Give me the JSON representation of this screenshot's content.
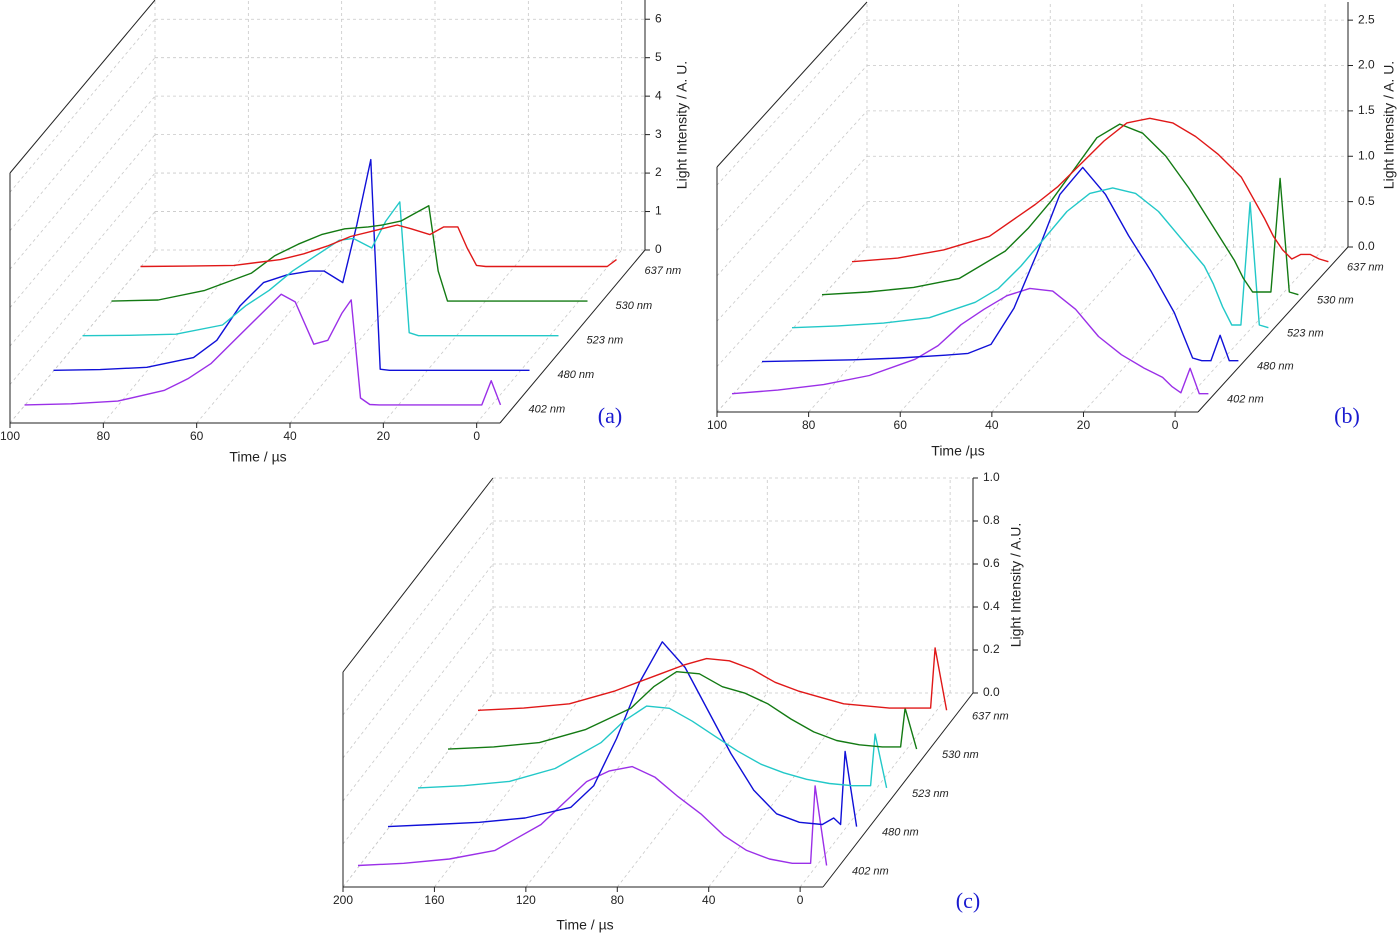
{
  "chart_data": [
    {
      "type": "waterfall",
      "label": "(a)",
      "xlabel": "Time / µs",
      "ylabel": "Light Intensity / A. U.",
      "x": [
        100,
        90,
        80,
        70,
        65,
        60,
        55,
        50,
        45,
        42,
        38,
        35,
        32,
        30,
        28,
        26,
        24,
        22,
        20,
        16,
        12,
        8,
        4,
        2,
        0,
        -2
      ],
      "xlim": [
        100,
        -5
      ],
      "xticks": [
        100,
        80,
        60,
        40,
        20,
        0
      ],
      "ylim": [
        0,
        6.5
      ],
      "yticks": [
        0,
        1,
        2,
        3,
        4,
        5,
        6
      ],
      "grid": true,
      "series": [
        {
          "name": "402 nm",
          "color": "#9b30e8",
          "values": [
            0.02,
            0.05,
            0.12,
            0.4,
            0.7,
            1.1,
            1.7,
            2.3,
            2.9,
            2.7,
            1.6,
            1.7,
            2.4,
            2.75,
            0.2,
            0.03,
            0.02,
            0.02,
            0.02,
            0.02,
            0.02,
            0.02,
            0.02,
            0.02,
            0.65,
            0.02
          ]
        },
        {
          "name": "480 nm",
          "color": "#1010d8",
          "values": [
            0.02,
            0.04,
            0.1,
            0.35,
            0.8,
            1.7,
            2.3,
            2.5,
            2.6,
            2.6,
            2.3,
            3.8,
            5.5,
            0.05,
            0.02,
            0.02,
            0.02,
            0.02,
            0.02,
            0.02,
            0.02,
            0.02,
            0.02,
            0.02,
            0.02,
            0.02
          ]
        },
        {
          "name": "523 nm",
          "color": "#22c8c8",
          "values": [
            0.02,
            0.03,
            0.06,
            0.3,
            0.8,
            1.2,
            1.7,
            2.1,
            2.5,
            2.55,
            2.3,
            3.0,
            3.5,
            0.1,
            0.02,
            0.02,
            0.02,
            0.02,
            0.02,
            0.02,
            0.02,
            0.02,
            0.02,
            0.02,
            0.02,
            0.02
          ]
        },
        {
          "name": "530 nm",
          "color": "#137a13",
          "values": [
            0.02,
            0.05,
            0.3,
            0.75,
            1.2,
            1.5,
            1.75,
            1.9,
            1.95,
            2.0,
            2.1,
            2.3,
            2.5,
            0.8,
            0.02,
            0.02,
            0.02,
            0.02,
            0.02,
            0.02,
            0.02,
            0.02,
            0.02,
            0.02,
            0.02,
            0.02
          ]
        },
        {
          "name": "637 nm",
          "color": "#e01818",
          "values": [
            0.02,
            0.03,
            0.05,
            0.2,
            0.35,
            0.55,
            0.8,
            0.95,
            1.1,
            1.0,
            0.85,
            1.05,
            1.05,
            0.5,
            0.05,
            0.02,
            0.02,
            0.02,
            0.02,
            0.02,
            0.02,
            0.02,
            0.02,
            0.02,
            0.02,
            0.2
          ]
        }
      ]
    },
    {
      "type": "waterfall",
      "label": "(b)",
      "xlabel": "Time /µs",
      "ylabel": "Light Intensity / A. U.",
      "x": [
        100,
        90,
        80,
        70,
        60,
        55,
        50,
        45,
        40,
        35,
        30,
        25,
        20,
        15,
        10,
        8,
        6,
        4,
        2,
        0,
        -2,
        -4
      ],
      "xlim": [
        100,
        -5
      ],
      "xticks": [
        100,
        80,
        60,
        40,
        20,
        0
      ],
      "ylim": [
        0,
        2.7
      ],
      "yticks": [
        {
          "value": 0,
          "label": "0.0"
        },
        0.5,
        {
          "value": 1,
          "label": "1.0"
        },
        1.5,
        {
          "value": 2,
          "label": "2.0"
        },
        2.5
      ],
      "grid": true,
      "series": [
        {
          "name": "402 nm",
          "color": "#9b30e8",
          "values": [
            0.02,
            0.06,
            0.12,
            0.22,
            0.4,
            0.55,
            0.78,
            0.95,
            1.1,
            1.18,
            1.15,
            0.95,
            0.65,
            0.45,
            0.3,
            0.25,
            0.2,
            0.1,
            0.03,
            0.3,
            0.02,
            0.02
          ]
        },
        {
          "name": "480 nm",
          "color": "#1010d8",
          "values": [
            0.01,
            0.02,
            0.03,
            0.05,
            0.08,
            0.1,
            0.2,
            0.6,
            1.2,
            1.85,
            2.15,
            1.85,
            1.4,
            1.0,
            0.55,
            0.3,
            0.05,
            0.02,
            0.02,
            0.3,
            0.02,
            0.02
          ]
        },
        {
          "name": "523 nm",
          "color": "#22c8c8",
          "values": [
            0.02,
            0.04,
            0.07,
            0.13,
            0.3,
            0.45,
            0.7,
            1.0,
            1.3,
            1.5,
            1.56,
            1.5,
            1.3,
            1.0,
            0.7,
            0.5,
            0.25,
            0.05,
            0.05,
            1.4,
            0.05,
            0.02
          ]
        },
        {
          "name": "530 nm",
          "color": "#137a13",
          "values": [
            0.02,
            0.05,
            0.1,
            0.2,
            0.5,
            0.75,
            1.05,
            1.4,
            1.75,
            1.9,
            1.8,
            1.55,
            1.2,
            0.8,
            0.4,
            0.2,
            0.05,
            0.05,
            0.05,
            1.3,
            0.05,
            0.02
          ]
        },
        {
          "name": "637 nm",
          "color": "#e01818",
          "values": [
            0.02,
            0.06,
            0.15,
            0.3,
            0.65,
            0.85,
            1.1,
            1.35,
            1.55,
            1.6,
            1.55,
            1.4,
            1.2,
            0.95,
            0.5,
            0.3,
            0.15,
            0.05,
            0.1,
            0.1,
            0.05,
            0.02
          ]
        }
      ]
    },
    {
      "type": "waterfall",
      "label": "(c)",
      "xlabel": "Time / µs",
      "ylabel": "Light Intensity / A.U.",
      "x": [
        200,
        180,
        160,
        140,
        120,
        110,
        100,
        90,
        80,
        70,
        60,
        50,
        40,
        30,
        20,
        10,
        5,
        2,
        0,
        -5
      ],
      "xlim": [
        200,
        -10
      ],
      "xticks": [
        200,
        160,
        120,
        80,
        40,
        0
      ],
      "ylim": [
        0,
        1
      ],
      "yticks": [
        {
          "value": 0,
          "label": "0.0"
        },
        0.2,
        0.4,
        0.6,
        0.8,
        {
          "value": 1,
          "label": "1.0"
        }
      ],
      "grid": true,
      "series": [
        {
          "name": "402 nm",
          "color": "#9b30e8",
          "values": [
            0.01,
            0.02,
            0.04,
            0.08,
            0.2,
            0.3,
            0.4,
            0.45,
            0.47,
            0.42,
            0.33,
            0.25,
            0.15,
            0.08,
            0.04,
            0.02,
            0.02,
            0.02,
            0.38,
            0.01
          ]
        },
        {
          "name": "480 nm",
          "color": "#1010d8",
          "values": [
            0.01,
            0.02,
            0.03,
            0.05,
            0.1,
            0.2,
            0.42,
            0.68,
            0.87,
            0.75,
            0.55,
            0.35,
            0.18,
            0.07,
            0.03,
            0.02,
            0.05,
            0.02,
            0.36,
            0.01
          ]
        },
        {
          "name": "523 nm",
          "color": "#22c8c8",
          "values": [
            0.01,
            0.02,
            0.04,
            0.1,
            0.22,
            0.32,
            0.39,
            0.38,
            0.32,
            0.25,
            0.18,
            0.12,
            0.08,
            0.05,
            0.03,
            0.02,
            0.02,
            0.02,
            0.26,
            0.01
          ]
        },
        {
          "name": "530 nm",
          "color": "#137a13",
          "values": [
            0.01,
            0.02,
            0.04,
            0.1,
            0.2,
            0.3,
            0.37,
            0.36,
            0.3,
            0.27,
            0.22,
            0.15,
            0.09,
            0.05,
            0.03,
            0.02,
            0.02,
            0.02,
            0.2,
            0.01
          ]
        },
        {
          "name": "637 nm",
          "color": "#e01818",
          "values": [
            0.01,
            0.02,
            0.04,
            0.1,
            0.18,
            0.22,
            0.25,
            0.24,
            0.2,
            0.14,
            0.1,
            0.07,
            0.04,
            0.03,
            0.02,
            0.02,
            0.02,
            0.02,
            0.3,
            0.01
          ]
        }
      ]
    }
  ]
}
